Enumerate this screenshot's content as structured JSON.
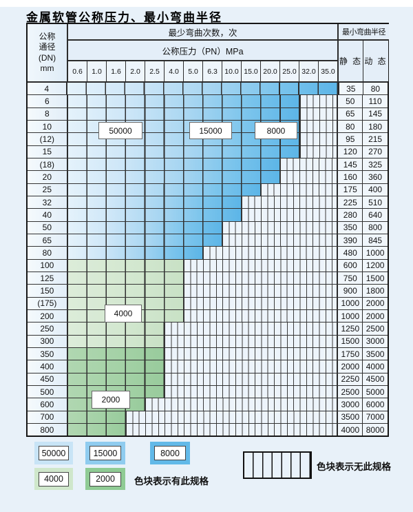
{
  "title": "金属软管公称压力、最小弯曲半径",
  "table": {
    "header": {
      "dn_lines": [
        "公称",
        "通径",
        "(DN)",
        "mm"
      ],
      "bend_count_title": "最少弯曲次数，次",
      "pressure_title": "公称压力（PN）MPa",
      "pressure_columns": [
        "0.6",
        "1.0",
        "1.6",
        "2.0",
        "2.5",
        "4.0",
        "5.0",
        "6.3",
        "10.0",
        "15.0",
        "20.0",
        "25.0",
        "32.0",
        "35.0"
      ],
      "radius_title": "最小弯曲半径",
      "static_label": "静 态",
      "dynamic_label": "动 态"
    },
    "rows": [
      {
        "dn": "4",
        "colored": 14,
        "zone": "blue",
        "static": "35",
        "dynamic": "80"
      },
      {
        "dn": "6",
        "colored": 12,
        "zone": "blue",
        "static": "50",
        "dynamic": "110"
      },
      {
        "dn": "8",
        "colored": 12,
        "zone": "blue",
        "static": "65",
        "dynamic": "145"
      },
      {
        "dn": "10",
        "colored": 12,
        "zone": "blue",
        "static": "80",
        "dynamic": "180"
      },
      {
        "dn": "(12)",
        "colored": 12,
        "zone": "blue",
        "static": "95",
        "dynamic": "215"
      },
      {
        "dn": "15",
        "colored": 12,
        "zone": "blue",
        "static": "120",
        "dynamic": "270"
      },
      {
        "dn": "(18)",
        "colored": 11,
        "zone": "blue",
        "static": "145",
        "dynamic": "325"
      },
      {
        "dn": "20",
        "colored": 11,
        "zone": "blue",
        "static": "160",
        "dynamic": "360"
      },
      {
        "dn": "25",
        "colored": 10,
        "zone": "blue",
        "static": "175",
        "dynamic": "400"
      },
      {
        "dn": "32",
        "colored": 9,
        "zone": "blue",
        "static": "225",
        "dynamic": "510"
      },
      {
        "dn": "40",
        "colored": 9,
        "zone": "blue",
        "static": "280",
        "dynamic": "640"
      },
      {
        "dn": "50",
        "colored": 8,
        "zone": "blue",
        "static": "350",
        "dynamic": "800"
      },
      {
        "dn": "65",
        "colored": 8,
        "zone": "blue",
        "static": "390",
        "dynamic": "845"
      },
      {
        "dn": "80",
        "colored": 7,
        "zone": "blue",
        "static": "480",
        "dynamic": "1000"
      },
      {
        "dn": "100",
        "colored": 6,
        "zone": "g4",
        "static": "600",
        "dynamic": "1200"
      },
      {
        "dn": "125",
        "colored": 6,
        "zone": "g4",
        "static": "750",
        "dynamic": "1500"
      },
      {
        "dn": "150",
        "colored": 6,
        "zone": "g4",
        "static": "900",
        "dynamic": "1800"
      },
      {
        "dn": "(175)",
        "colored": 6,
        "zone": "g4",
        "static": "1000",
        "dynamic": "2000"
      },
      {
        "dn": "200",
        "colored": 6,
        "zone": "g4",
        "static": "1000",
        "dynamic": "2000"
      },
      {
        "dn": "250",
        "colored": 5,
        "zone": "g4",
        "static": "1250",
        "dynamic": "2500"
      },
      {
        "dn": "300",
        "colored": 5,
        "zone": "g4",
        "static": "1500",
        "dynamic": "3000"
      },
      {
        "dn": "350",
        "colored": 5,
        "zone": "g2",
        "static": "1750",
        "dynamic": "3500"
      },
      {
        "dn": "400",
        "colored": 5,
        "zone": "g2",
        "static": "2000",
        "dynamic": "4000"
      },
      {
        "dn": "450",
        "colored": 5,
        "zone": "g2",
        "static": "2250",
        "dynamic": "4500"
      },
      {
        "dn": "500",
        "colored": 5,
        "zone": "g2",
        "static": "2500",
        "dynamic": "5000"
      },
      {
        "dn": "600",
        "colored": 4,
        "zone": "g2",
        "static": "3000",
        "dynamic": "6000"
      },
      {
        "dn": "700",
        "colored": 3,
        "zone": "g2",
        "static": "3500",
        "dynamic": "7000"
      },
      {
        "dn": "800",
        "colored": 3,
        "zone": "g2",
        "static": "4000",
        "dynamic": "8000"
      }
    ]
  },
  "overlay_labels": {
    "l50000": "50000",
    "l15000": "15000",
    "l8000": "8000",
    "l4000": "4000",
    "l2000": "2000"
  },
  "legend": {
    "items": [
      {
        "label": "50000",
        "color": "#c8e4f6"
      },
      {
        "label": "15000",
        "color": "#8fccef"
      },
      {
        "label": "8000",
        "color": "#62b9e8"
      },
      {
        "label": "4000",
        "color": "#cfe7cb"
      },
      {
        "label": "2000",
        "color": "#8fcb94"
      }
    ],
    "has_spec_text": "色块表示有此规格",
    "no_spec_text": "色块表示无此规格"
  },
  "colors": {
    "page_bg": "#e8f1f9",
    "grid_line": "#2e2e2e",
    "blue_light_50000": "#cfe7f8",
    "blue_mid_15000": "#a6d5f1",
    "blue_dark_8000": "#5cb5e7",
    "green_4000": "#d2e7cf",
    "green_2000": "#a3d1a5",
    "stripe_cell_bg": "#edf4fb"
  }
}
